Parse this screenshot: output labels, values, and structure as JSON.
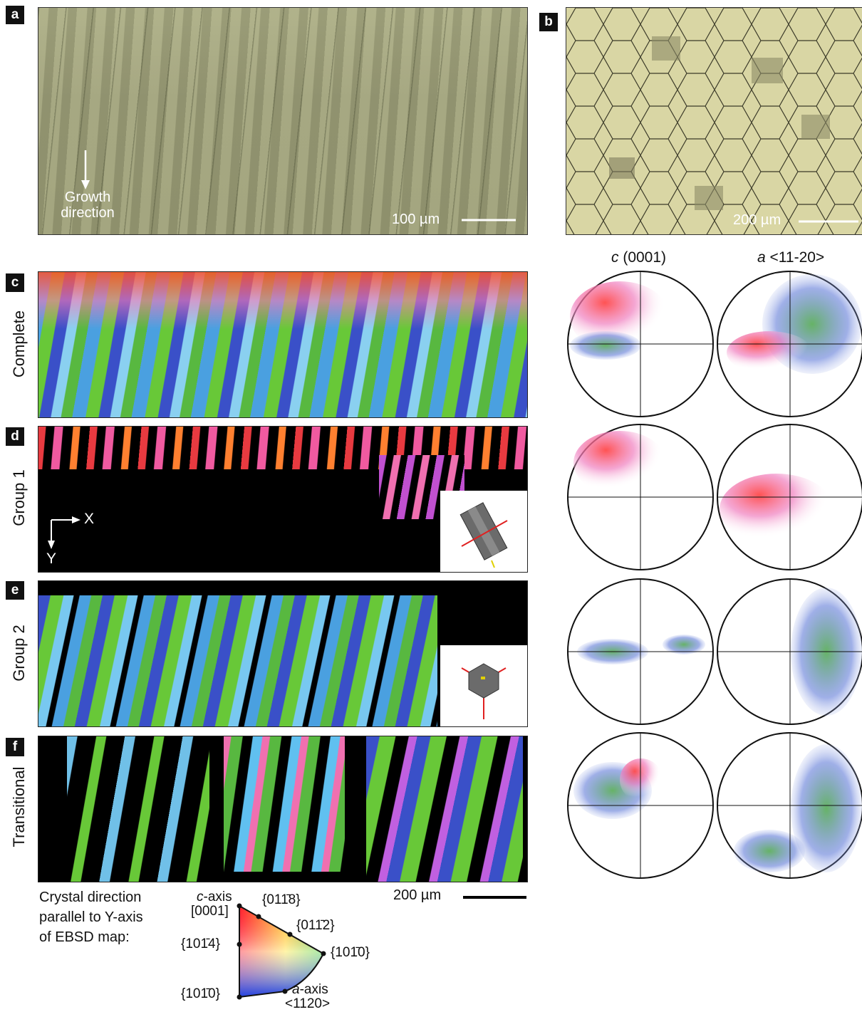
{
  "panels": {
    "a": {
      "letter": "a",
      "growth_label_1": "Growth",
      "growth_label_2": "direction",
      "scale_label": "100 µm"
    },
    "b": {
      "letter": "b",
      "scale_label": "200 µm"
    },
    "c": {
      "letter": "c",
      "row_label": "Complete"
    },
    "d": {
      "letter": "d",
      "row_label": "Group 1",
      "axis_x": "X",
      "axis_y": "Y"
    },
    "e": {
      "letter": "e",
      "row_label": "Group 2"
    },
    "f": {
      "letter": "f",
      "row_label": "Transitional"
    }
  },
  "pole_figure_headers": {
    "c_italic": "c",
    "c_rest": " (0001)",
    "a_italic": "a",
    "a_rest": " <11-20>"
  },
  "map_scale_label": "200 µm",
  "legend": {
    "title_line1": "Crystal direction",
    "title_line2": "parallel to Y-axis",
    "title_line3": "of EBSD map:",
    "c_axis_italic": "c",
    "c_axis_rest": "-axis",
    "c_axis_index": "[0001]",
    "top_1": "{011̄8}",
    "top_2": "{011̄2}",
    "right": "{101̄0}",
    "left_mid": "{101̄4}",
    "left_bottom": "{101̄0}",
    "a_axis_italic": "a",
    "a_axis_rest": "-axis",
    "a_axis_index": "<1120>"
  }
}
